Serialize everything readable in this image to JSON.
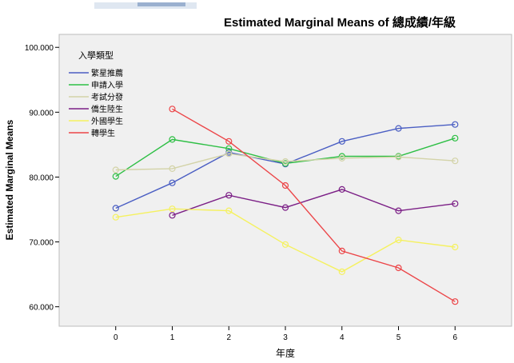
{
  "chart_data": {
    "type": "line",
    "title": "Estimated Marginal Means of 總成績/年級",
    "xlabel": "年度",
    "ylabel": "Estimated Marginal Means",
    "x": [
      0,
      1,
      2,
      3,
      4,
      5,
      6
    ],
    "xlim": [
      -1,
      7
    ],
    "ylim": [
      57,
      102
    ],
    "yticks": [
      "60.000",
      "70.000",
      "80.000",
      "90.000",
      "100.000"
    ],
    "ytick_values": [
      60,
      70,
      80,
      90,
      100
    ],
    "grid": false,
    "legend_title": "入學類型",
    "legend_position": "top-left",
    "series": [
      {
        "name": "繁星推薦",
        "color": "#4a5ec3",
        "values": [
          75.2,
          79.1,
          83.8,
          82.0,
          85.5,
          87.5,
          88.1
        ]
      },
      {
        "name": "申請入學",
        "color": "#2ebf45",
        "values": [
          80.1,
          85.8,
          84.4,
          82.1,
          83.2,
          83.2,
          86.0
        ]
      },
      {
        "name": "考試分發",
        "color": "#d3d3a8",
        "values": [
          81.1,
          81.3,
          83.6,
          82.4,
          82.9,
          83.1,
          82.5
        ]
      },
      {
        "name": "僑生陸生",
        "color": "#7b1f86",
        "values": [
          null,
          74.1,
          77.2,
          75.3,
          78.1,
          74.8,
          75.9
        ]
      },
      {
        "name": "外國學生",
        "color": "#f5f15f",
        "values": [
          73.8,
          75.1,
          74.8,
          69.6,
          65.4,
          70.3,
          69.2
        ]
      },
      {
        "name": "轉學生",
        "color": "#ec4548",
        "values": [
          null,
          90.5,
          85.5,
          78.7,
          68.6,
          66.0,
          60.8
        ]
      }
    ]
  }
}
